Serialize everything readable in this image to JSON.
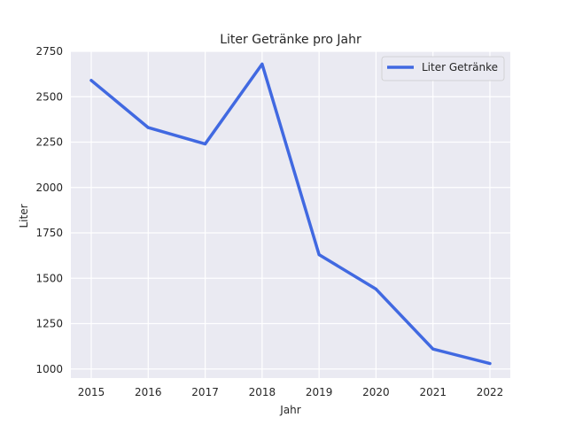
{
  "chart_data": {
    "type": "line",
    "title": "Liter Getränke pro Jahr",
    "xlabel": "Jahr",
    "ylabel": "Liter",
    "x": [
      "2015",
      "2016",
      "2017",
      "2018",
      "2019",
      "2020",
      "2021",
      "2022"
    ],
    "series": [
      {
        "name": "Liter Getränke",
        "values": [
          2590,
          2330,
          2240,
          2680,
          1630,
          1440,
          1110,
          1030
        ],
        "color": "#4169e1"
      }
    ],
    "yticks": [
      "1000",
      "1250",
      "1500",
      "1750",
      "2000",
      "2250",
      "2500",
      "2750"
    ],
    "ylim": [
      950,
      2750
    ],
    "grid": true,
    "legend_position": "top-right",
    "background_color": "#eaeaf2",
    "grid_color": "#ffffff"
  }
}
